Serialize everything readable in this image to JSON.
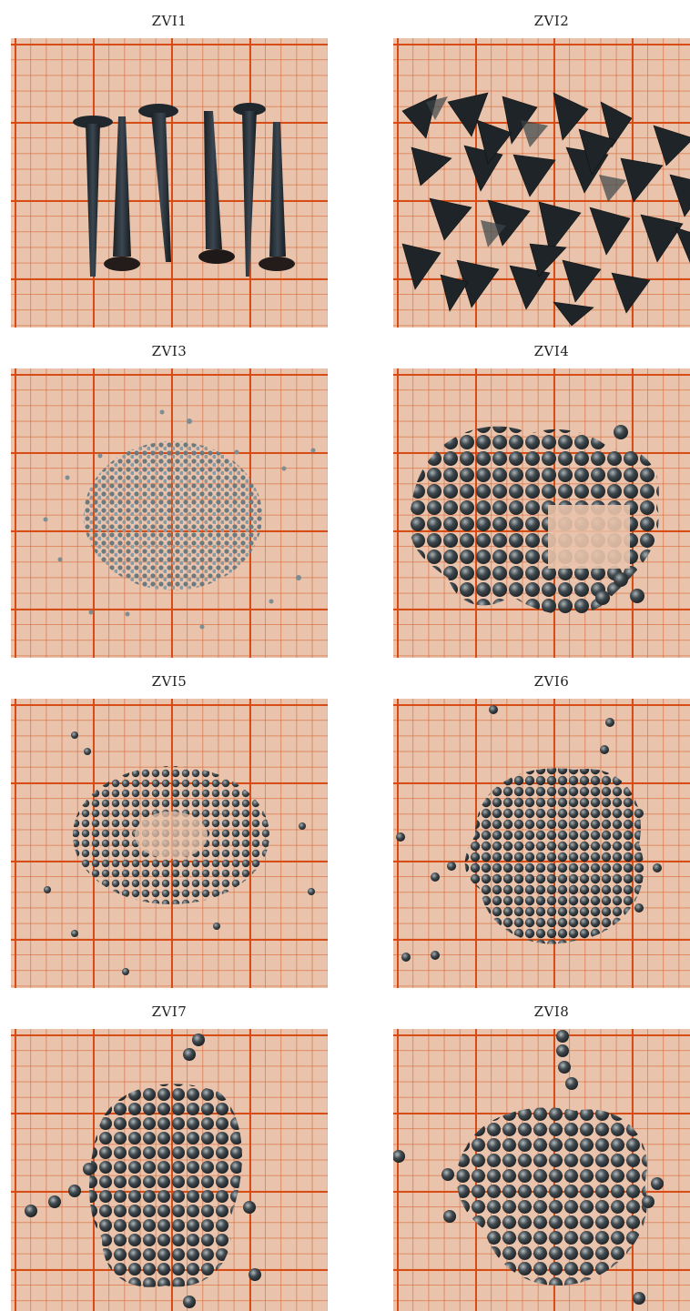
{
  "panels": [
    {
      "label": "ZVI1",
      "content": "nails"
    },
    {
      "label": "ZVI2",
      "content": "shards"
    },
    {
      "label": "ZVI3",
      "content": "fine-grit"
    },
    {
      "label": "ZVI4",
      "content": "large-shot"
    },
    {
      "label": "ZVI5",
      "content": "small-shot"
    },
    {
      "label": "ZVI6",
      "content": "medium-shot"
    },
    {
      "label": "ZVI7",
      "content": "large-shot"
    },
    {
      "label": "ZVI8",
      "content": "large-shot"
    }
  ]
}
